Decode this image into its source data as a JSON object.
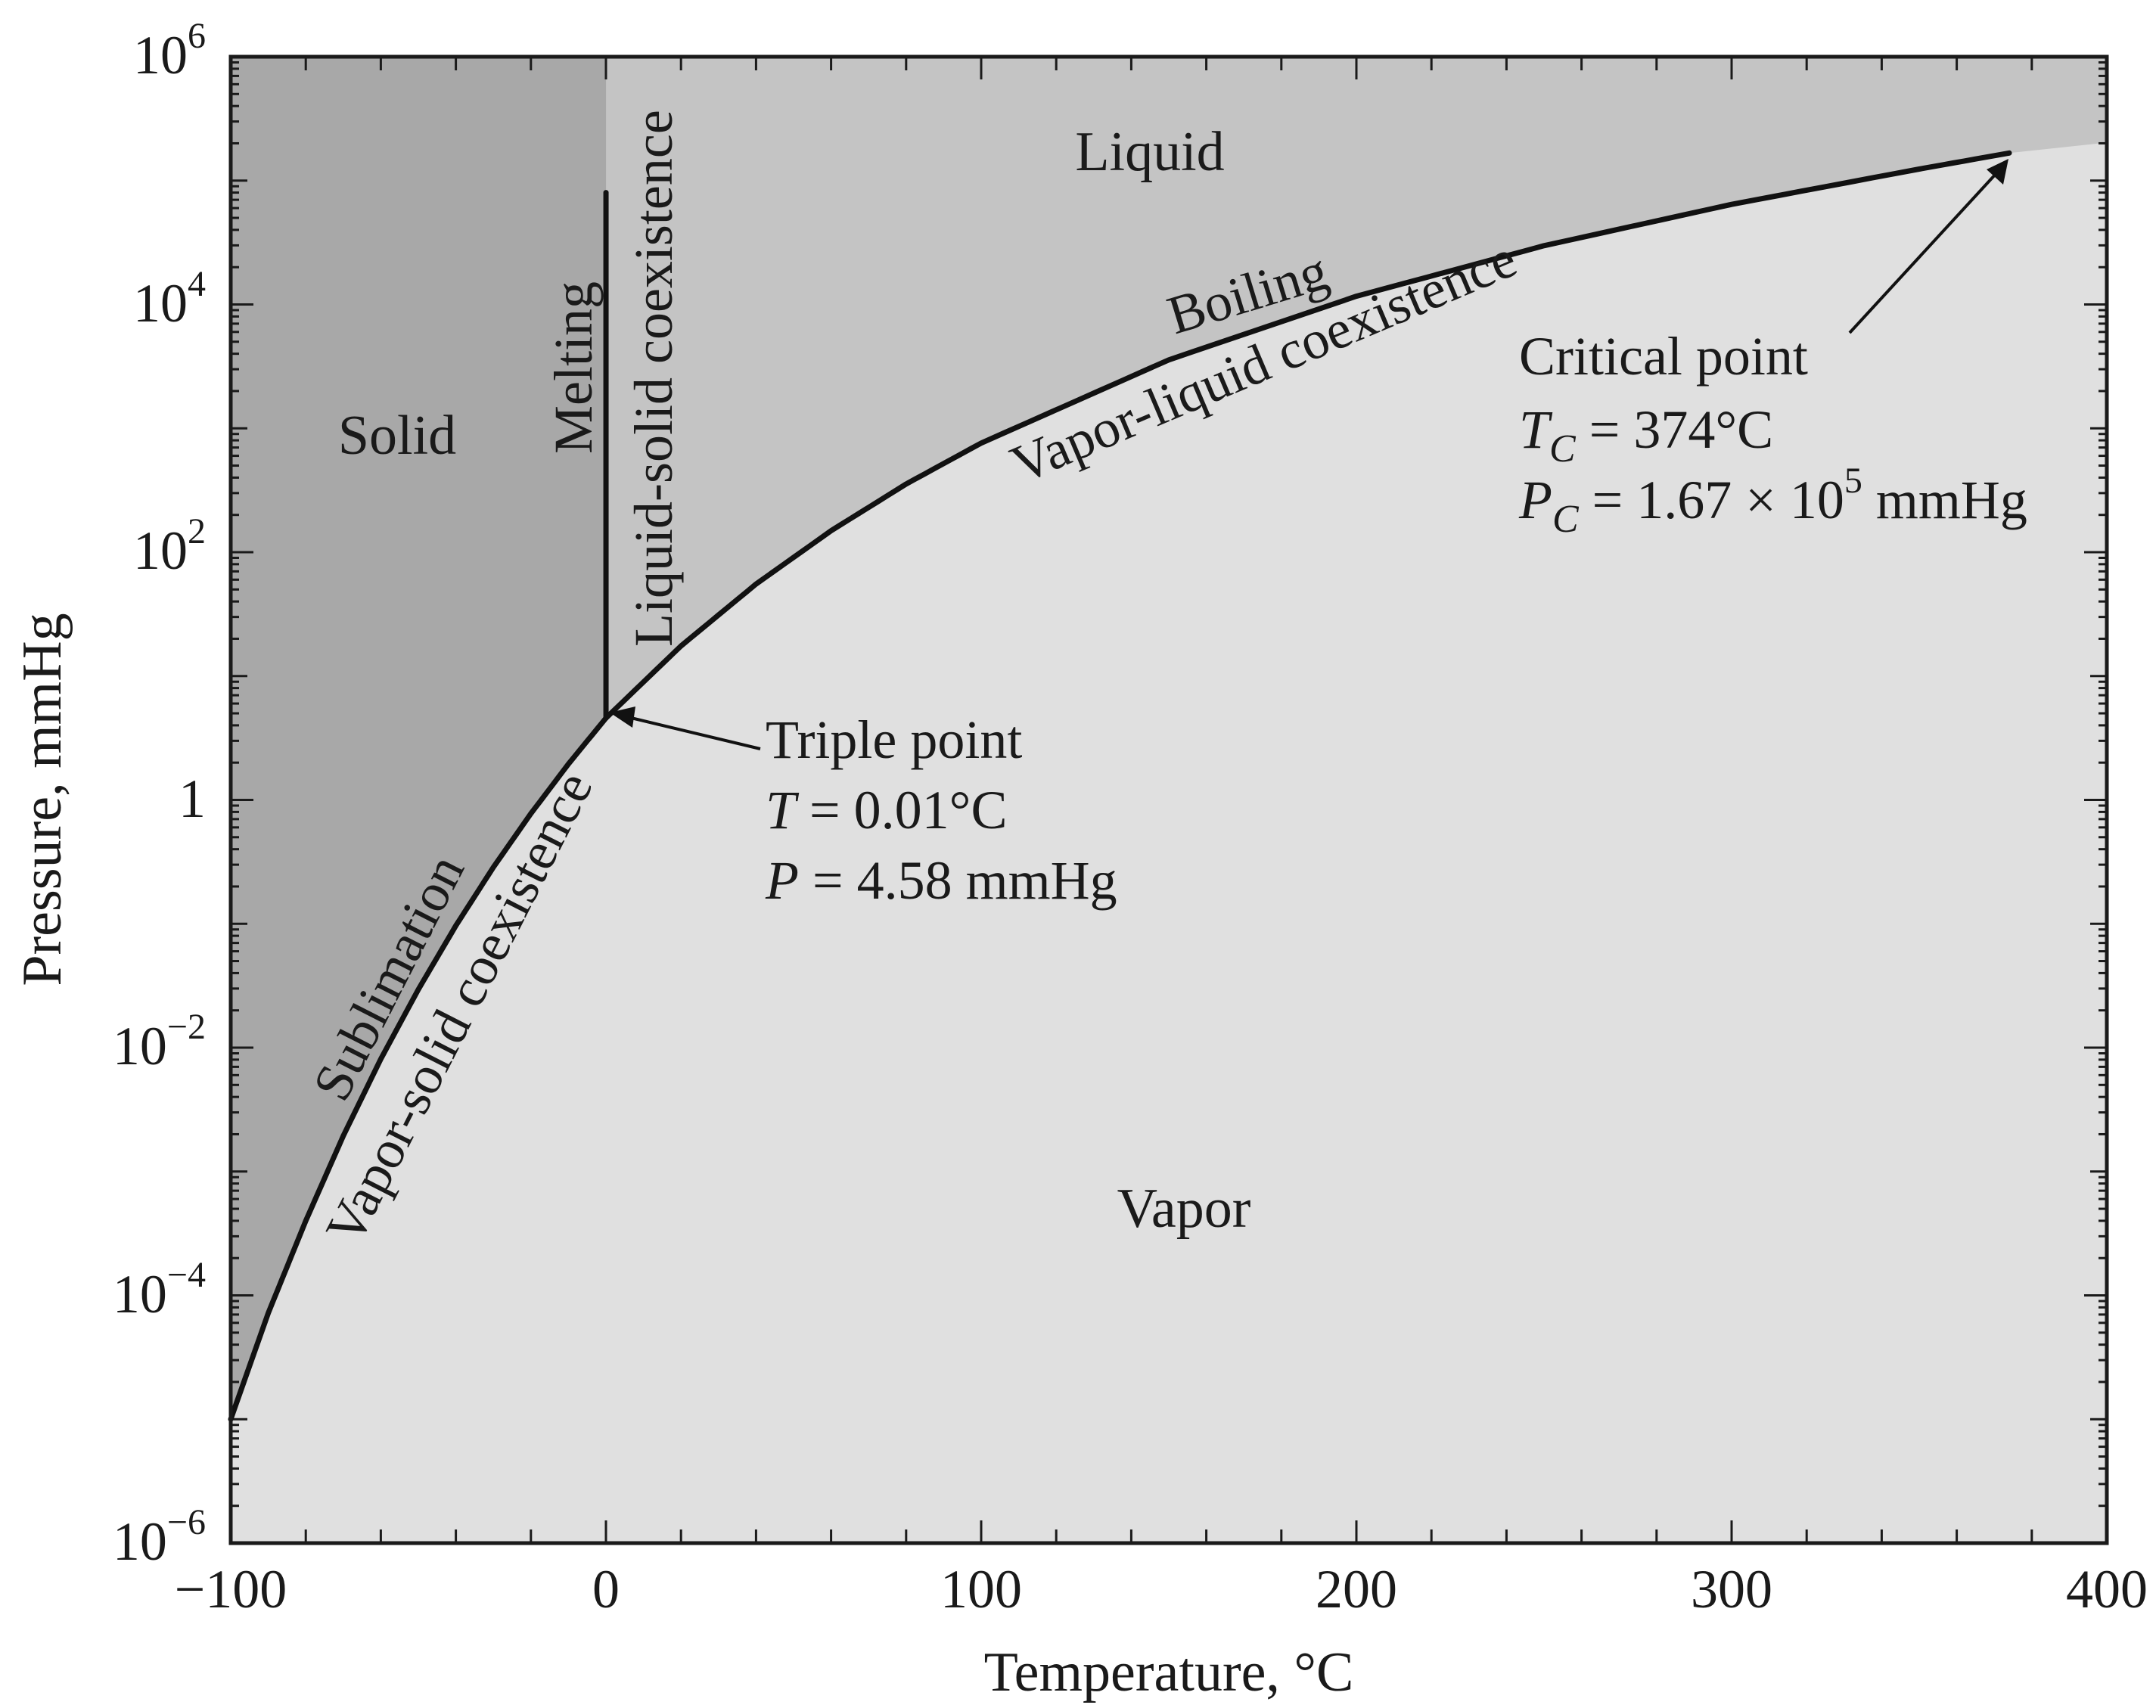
{
  "chart_data": {
    "type": "line",
    "title": "",
    "xlabel": "Temperature, °C",
    "ylabel": "Pressure, mmHg",
    "xlim": [
      -100,
      400
    ],
    "ylim": [
      1e-06,
      1000000.0
    ],
    "y_scale": "log",
    "grid": false,
    "x_ticks": [
      {
        "value": -100,
        "label": "−100"
      },
      {
        "value": 0,
        "label": "0"
      },
      {
        "value": 100,
        "label": "100"
      },
      {
        "value": 200,
        "label": "200"
      },
      {
        "value": 300,
        "label": "300"
      },
      {
        "value": 400,
        "label": "400"
      }
    ],
    "y_ticks": [
      {
        "value": 1e-06,
        "base": "10",
        "exp": "−6"
      },
      {
        "value": 0.0001,
        "base": "10",
        "exp": "−4"
      },
      {
        "value": 0.01,
        "base": "10",
        "exp": "−2"
      },
      {
        "value": 1,
        "base": "1",
        "exp": ""
      },
      {
        "value": 100.0,
        "base": "10",
        "exp": "2"
      },
      {
        "value": 10000.0,
        "base": "10",
        "exp": "4"
      },
      {
        "value": 1000000.0,
        "base": "10",
        "exp": "6"
      }
    ],
    "series": [
      {
        "name": "Vapor-solid coexistence",
        "x": [
          -100,
          -90,
          -80,
          -70,
          -60,
          -50,
          -40,
          -30,
          -20,
          -10,
          0.01
        ],
        "y": [
          1e-05,
          7.2e-05,
          0.0004,
          0.00194,
          0.0081,
          0.0295,
          0.0966,
          0.286,
          0.776,
          1.95,
          4.58
        ]
      },
      {
        "name": "Liquid-solid coexistence",
        "x": [
          0.01,
          0.01
        ],
        "y": [
          4.58,
          80000.0
        ]
      },
      {
        "name": "Vapor-liquid coexistence",
        "x": [
          0.01,
          20,
          40,
          60,
          80,
          100,
          150,
          200,
          250,
          300,
          350,
          374
        ],
        "y": [
          4.58,
          17.5,
          55.3,
          149,
          355,
          760,
          3570,
          11650,
          29800,
          64300,
          124000,
          167000
        ]
      }
    ],
    "regions": [
      {
        "label": "Solid",
        "color": "#a8a8a8"
      },
      {
        "label": "Liquid",
        "color": "#c4c4c4"
      },
      {
        "label": "Vapor",
        "color": "#e0e0e0"
      }
    ],
    "curve_labels": {
      "sublimation": "Sublimation",
      "vapor_solid": "Vapor-solid coexistence",
      "melting": "Melting",
      "liquid_solid": "Liquid-solid coexistence",
      "boiling": "Boiling",
      "vapor_liquid": "Vapor-liquid coexistence"
    },
    "annotations": {
      "triple": {
        "title": "Triple point",
        "T_symbol": "T",
        "T_value": " = 0.01°C",
        "P_symbol": "P",
        "P_value": " = 4.58 mmHg",
        "x": 0.01,
        "y": 4.58
      },
      "critical": {
        "title": "Critical point",
        "T_symbol": "T",
        "T_sub": "C",
        "T_value": " = 374°C",
        "P_symbol": "P",
        "P_sub": "C",
        "P_value_pre": " = 1.67 × 10",
        "P_exp": "5",
        "P_value_post": " mmHg",
        "x": 374,
        "y": 167000
      }
    }
  }
}
